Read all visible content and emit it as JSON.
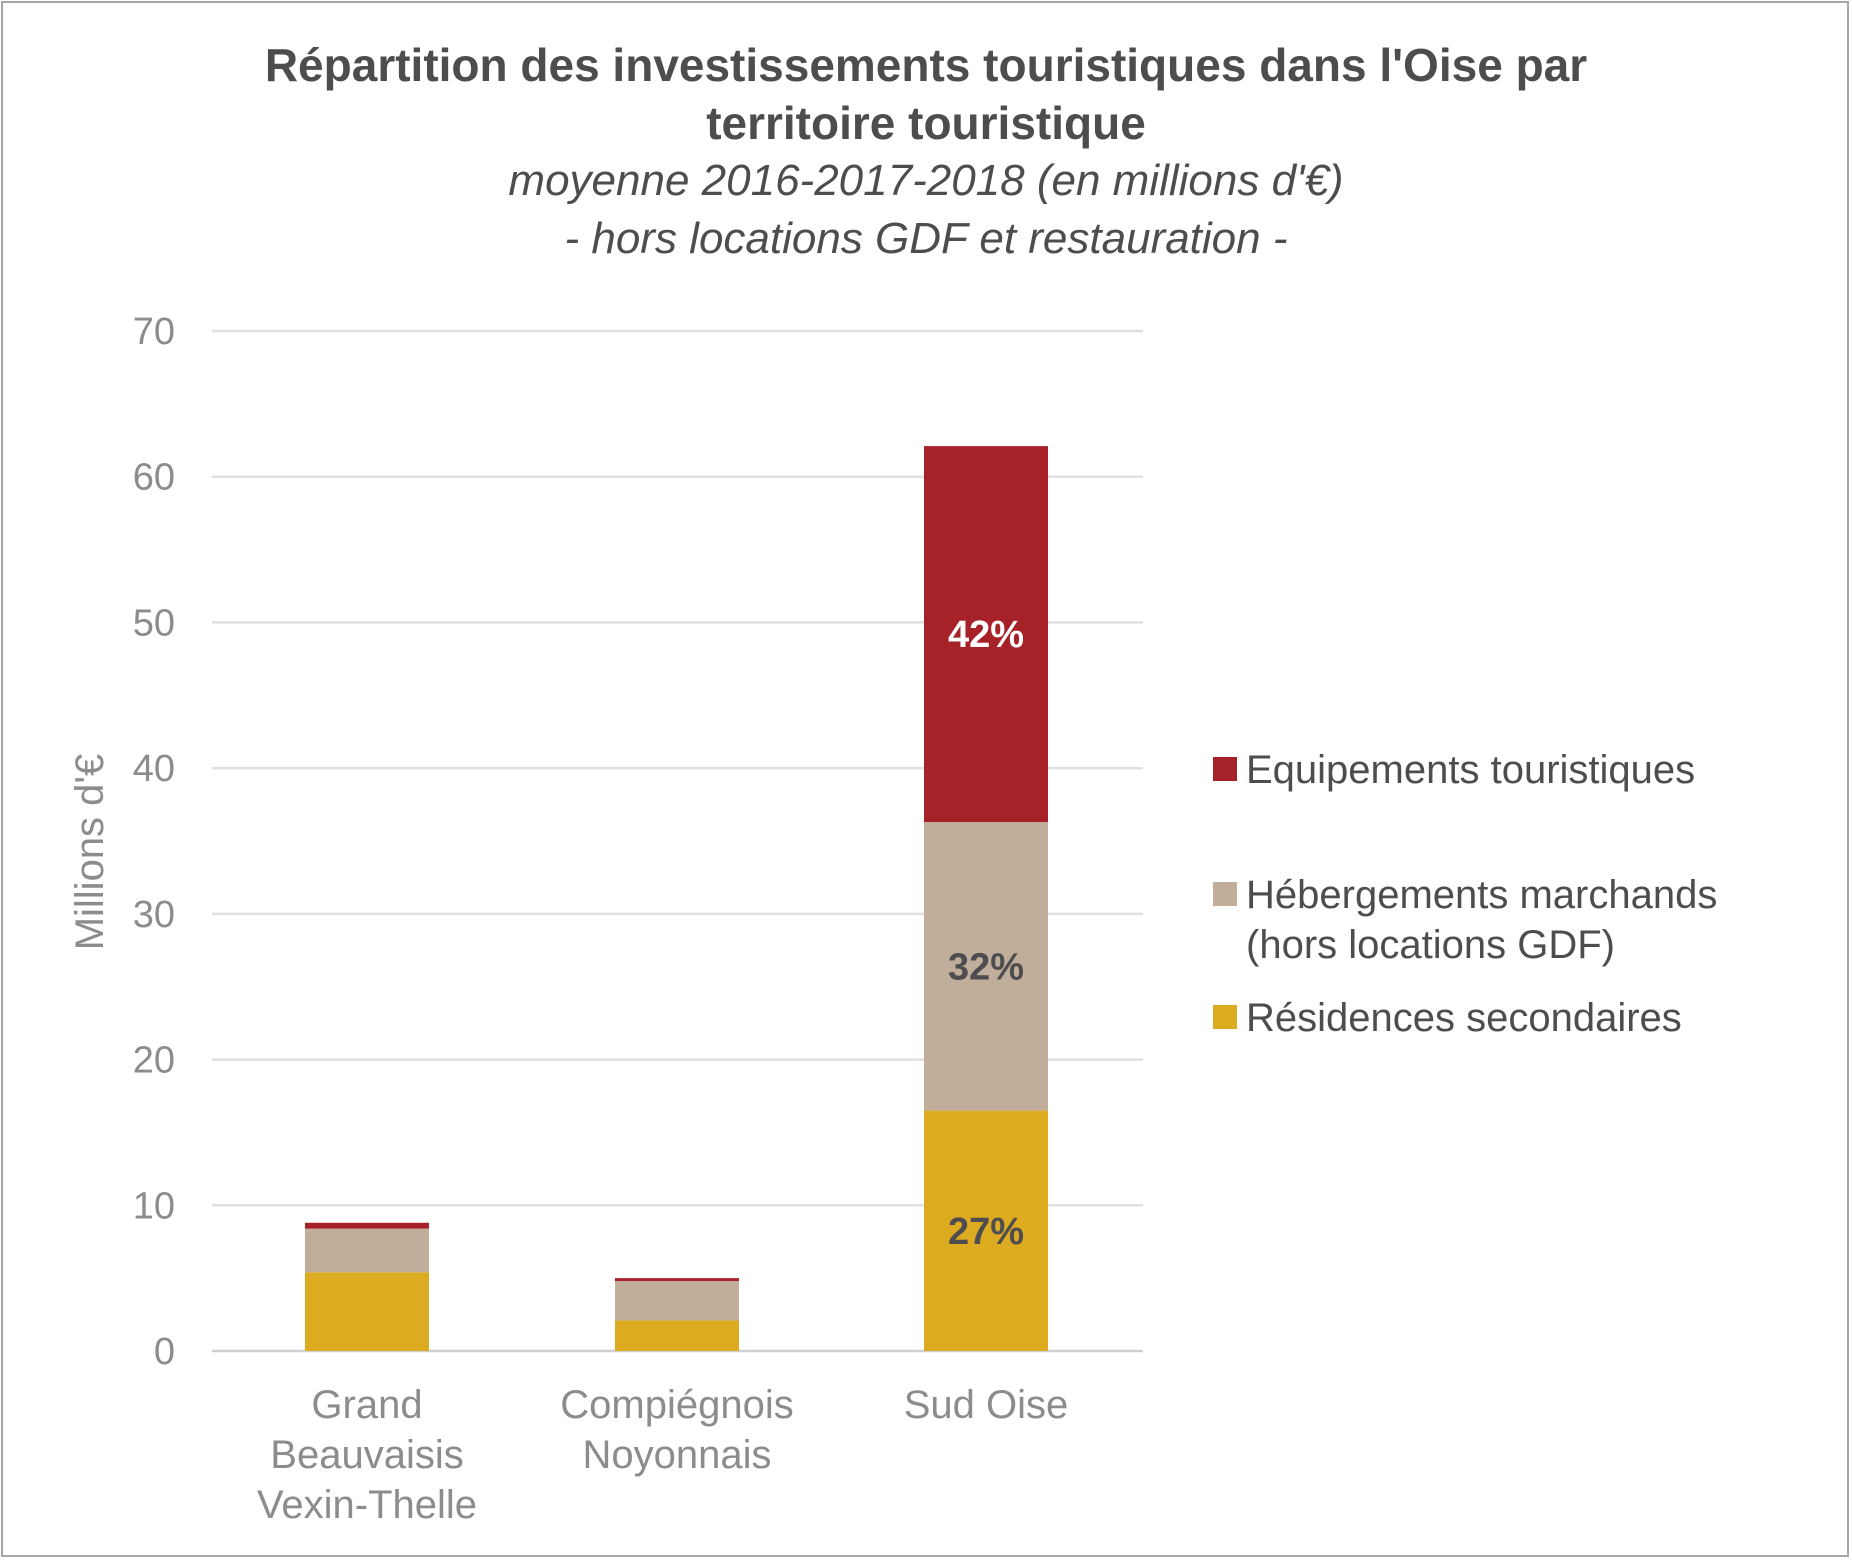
{
  "chart_data": {
    "type": "bar",
    "stacked": true,
    "title": "Répartition des investissements touristiques dans l'Oise par territoire touristique",
    "title_lines": [
      "Répartition des investissements touristiques dans l'Oise par",
      "territoire touristique"
    ],
    "subtitle_lines": [
      "moyenne 2016-2017-2018 (en millions d'€)",
      "- hors locations GDF et restauration -"
    ],
    "ylabel": "Millions d'€",
    "xlabel": "",
    "ylim": [
      0,
      70
    ],
    "yticks": [
      0,
      10,
      20,
      30,
      40,
      50,
      60,
      70
    ],
    "grid": true,
    "legend_position": "right",
    "categories": [
      "Grand Beauvaisis Vexin-Thelle",
      "Compiégnois Noyonnais",
      "Sud Oise"
    ],
    "category_lines": [
      [
        "Grand",
        "Beauvaisis",
        "Vexin-Thelle"
      ],
      [
        "Compiégnois",
        "Noyonnais"
      ],
      [
        "Sud Oise"
      ]
    ],
    "series": [
      {
        "name": "Résidences secondaires",
        "color": "#ddab1f",
        "values": [
          5.4,
          2.1,
          16.5
        ],
        "labels": [
          "",
          "",
          "27%"
        ],
        "label_color": "#4d4d4f"
      },
      {
        "name": "Hébergements marchands (hors locations GDF)",
        "color": "#c0ae9b",
        "values": [
          3.0,
          2.7,
          19.8
        ],
        "labels": [
          "",
          "",
          "32%"
        ],
        "label_color": "#4d4d4f"
      },
      {
        "name": "Equipements touristiques",
        "color": "#a62228",
        "values": [
          0.4,
          0.2,
          25.8
        ],
        "labels": [
          "",
          "",
          "42%"
        ],
        "label_color": "#ffffff"
      }
    ],
    "legend": [
      {
        "lines": [
          "Equipements touristiques"
        ],
        "color": "#a62228"
      },
      {
        "lines": [
          "Hébergements marchands",
          "(hors locations GDF)"
        ],
        "color": "#c0ae9b"
      },
      {
        "lines": [
          "Résidences secondaires"
        ],
        "color": "#ddab1f"
      }
    ]
  }
}
